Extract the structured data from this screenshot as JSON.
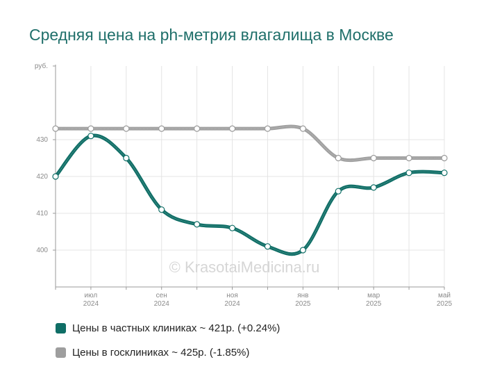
{
  "chart_data": {
    "type": "line",
    "title": "Средняя цена на ph-метрия влагалища в Москве",
    "ylabel": "руб.",
    "ylim": [
      390,
      450
    ],
    "yticks": [
      400,
      410,
      420,
      430
    ],
    "x_points": 12,
    "x_ticks": [
      {
        "index": 1,
        "line1": "июл",
        "line2": "2024"
      },
      {
        "index": 3,
        "line1": "сен",
        "line2": "2024"
      },
      {
        "index": 5,
        "line1": "ноя",
        "line2": "2024"
      },
      {
        "index": 7,
        "line1": "янв",
        "line2": "2025"
      },
      {
        "index": 9,
        "line1": "мар",
        "line2": "2025"
      },
      {
        "index": 11,
        "line1": "май",
        "line2": "2025"
      }
    ],
    "series": [
      {
        "name": "Цены в частных клиниках",
        "color": "#0f6e66",
        "values": [
          420,
          431,
          425,
          411,
          407,
          406,
          401,
          400,
          416,
          417,
          421,
          421
        ]
      },
      {
        "name": "Цены в госклиниках",
        "color": "#a0a0a0",
        "values": [
          433,
          433,
          433,
          433,
          433,
          433,
          433,
          433,
          425,
          425,
          425,
          425
        ]
      }
    ],
    "watermark": "© KrasotaiMedicina.ru",
    "grid": true,
    "legend_position": "bottom"
  },
  "legend": {
    "private": "Цены в частных клиниках ~ 421р. (+0.24%)",
    "public": "Цены в госклиниках ~ 425р. (-1.85%)"
  }
}
